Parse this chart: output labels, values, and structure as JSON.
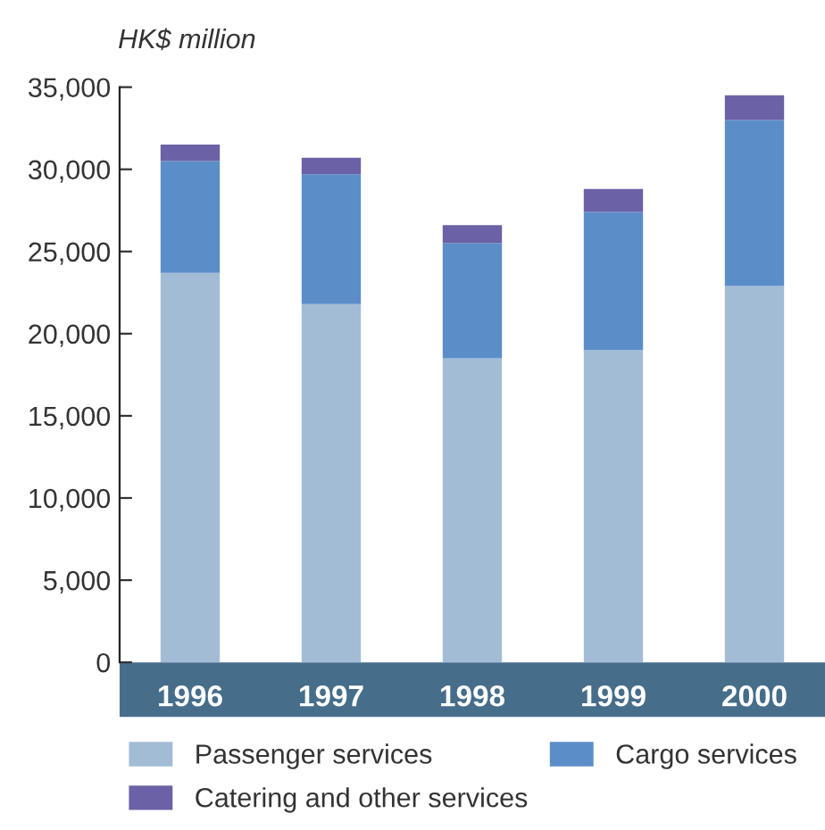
{
  "chart_data": {
    "type": "bar",
    "ylabel": "HK$ million",
    "stacked": true,
    "categories": [
      "1996",
      "1997",
      "1998",
      "1999",
      "2000"
    ],
    "series": [
      {
        "name": "Passenger services",
        "color": "#a3bcd6",
        "values": [
          23700,
          21800,
          18500,
          19000,
          22900
        ]
      },
      {
        "name": "Cargo services",
        "color": "#5b8ec9",
        "values": [
          6800,
          7900,
          7000,
          8400,
          10100
        ]
      },
      {
        "name": "Catering and other services",
        "color": "#6a61a6",
        "values": [
          1000,
          1000,
          1100,
          1400,
          1500
        ]
      }
    ],
    "ylim": [
      0,
      35000
    ],
    "yticks": [
      {
        "value": 0,
        "label": "0"
      },
      {
        "value": 5000,
        "label": "5,000"
      },
      {
        "value": 10000,
        "label": "10,000"
      },
      {
        "value": 15000,
        "label": "15,000"
      },
      {
        "value": 20000,
        "label": "20,000"
      },
      {
        "value": 25000,
        "label": "25,000"
      },
      {
        "value": 30000,
        "label": "30,000"
      },
      {
        "value": 35000,
        "label": "35,000"
      }
    ],
    "grid": false,
    "legend": "bottom"
  }
}
